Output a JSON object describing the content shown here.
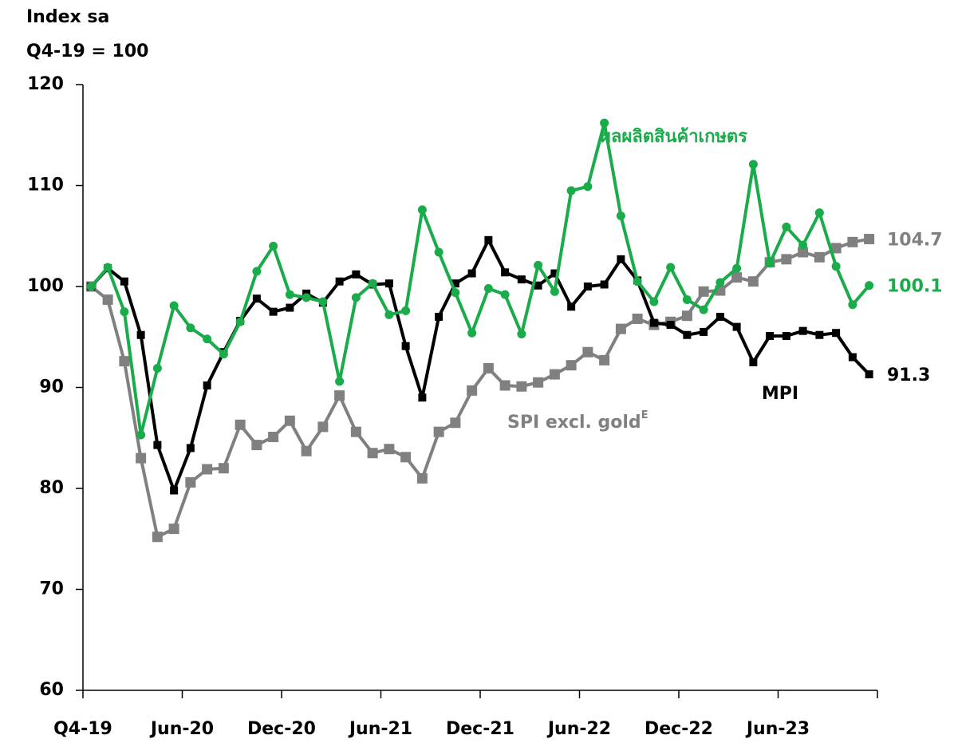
{
  "chart_data": {
    "type": "line",
    "ylabel": [
      "Index sa",
      "Q4-19 = 100"
    ],
    "categories": [
      "Q4-19",
      null,
      null,
      null,
      null,
      null,
      "Jun-20",
      null,
      null,
      null,
      null,
      null,
      "Dec-20",
      null,
      null,
      null,
      null,
      null,
      "Jun-21",
      null,
      null,
      null,
      null,
      null,
      "Dec-21",
      null,
      null,
      null,
      null,
      null,
      "Jun-22",
      null,
      null,
      null,
      null,
      null,
      "Dec-22",
      null,
      null,
      null,
      null,
      null,
      "Jun-23",
      null,
      null,
      null,
      null,
      null
    ],
    "ylim": [
      60,
      120
    ],
    "yticks": [
      60,
      70,
      80,
      90,
      100,
      110,
      120
    ],
    "grid": false,
    "series": [
      {
        "name": "SPI excl. gold",
        "name_sup": "E",
        "color": "#808080",
        "marker": "square",
        "values": [
          100,
          98.7,
          92.6,
          83.0,
          75.2,
          76.0,
          80.6,
          81.9,
          82.0,
          86.3,
          84.3,
          85.1,
          86.7,
          83.7,
          86.1,
          89.2,
          85.6,
          83.5,
          83.9,
          83.1,
          81.0,
          85.6,
          86.5,
          89.7,
          91.9,
          90.2,
          90.1,
          90.5,
          91.3,
          92.2,
          93.5,
          92.7,
          95.8,
          96.8,
          96.2,
          96.5,
          97.1,
          99.5,
          99.6,
          100.9,
          100.5,
          102.4,
          102.7,
          103.4,
          102.9,
          103.8,
          104.4,
          104.7
        ]
      },
      {
        "name": "MPI",
        "color": "#000000",
        "marker": "square",
        "values": [
          100,
          101.8,
          100.5,
          95.2,
          84.3,
          79.8,
          84.0,
          90.2,
          93.5,
          96.6,
          98.8,
          97.5,
          97.9,
          99.3,
          98.4,
          100.5,
          101.2,
          100.2,
          100.3,
          94.1,
          89.0,
          97.0,
          100.3,
          101.3,
          104.6,
          101.4,
          100.7,
          100.1,
          101.3,
          98.0,
          100.0,
          100.2,
          102.7,
          100.6,
          96.4,
          96.2,
          95.2,
          95.5,
          97.0,
          96.0,
          92.5,
          95.1,
          95.1,
          95.6,
          95.2,
          95.4,
          93.0,
          91.3
        ]
      },
      {
        "name": "ผลผลิตสินค้าเกษตร",
        "color": "#1aab4b",
        "marker": "circle",
        "values": [
          100,
          101.9,
          97.5,
          85.3,
          91.9,
          98.1,
          95.9,
          94.8,
          93.3,
          96.5,
          101.5,
          104.0,
          99.2,
          98.9,
          98.5,
          90.6,
          98.9,
          100.3,
          97.2,
          97.6,
          107.6,
          103.4,
          99.4,
          95.4,
          99.8,
          99.2,
          95.3,
          102.1,
          99.5,
          109.5,
          109.9,
          116.2,
          107.0,
          100.5,
          98.5,
          101.9,
          98.7,
          97.7,
          100.4,
          101.8,
          112.1,
          102.3,
          105.9,
          104.1,
          107.3,
          102.0,
          98.2,
          100.1
        ]
      }
    ]
  }
}
